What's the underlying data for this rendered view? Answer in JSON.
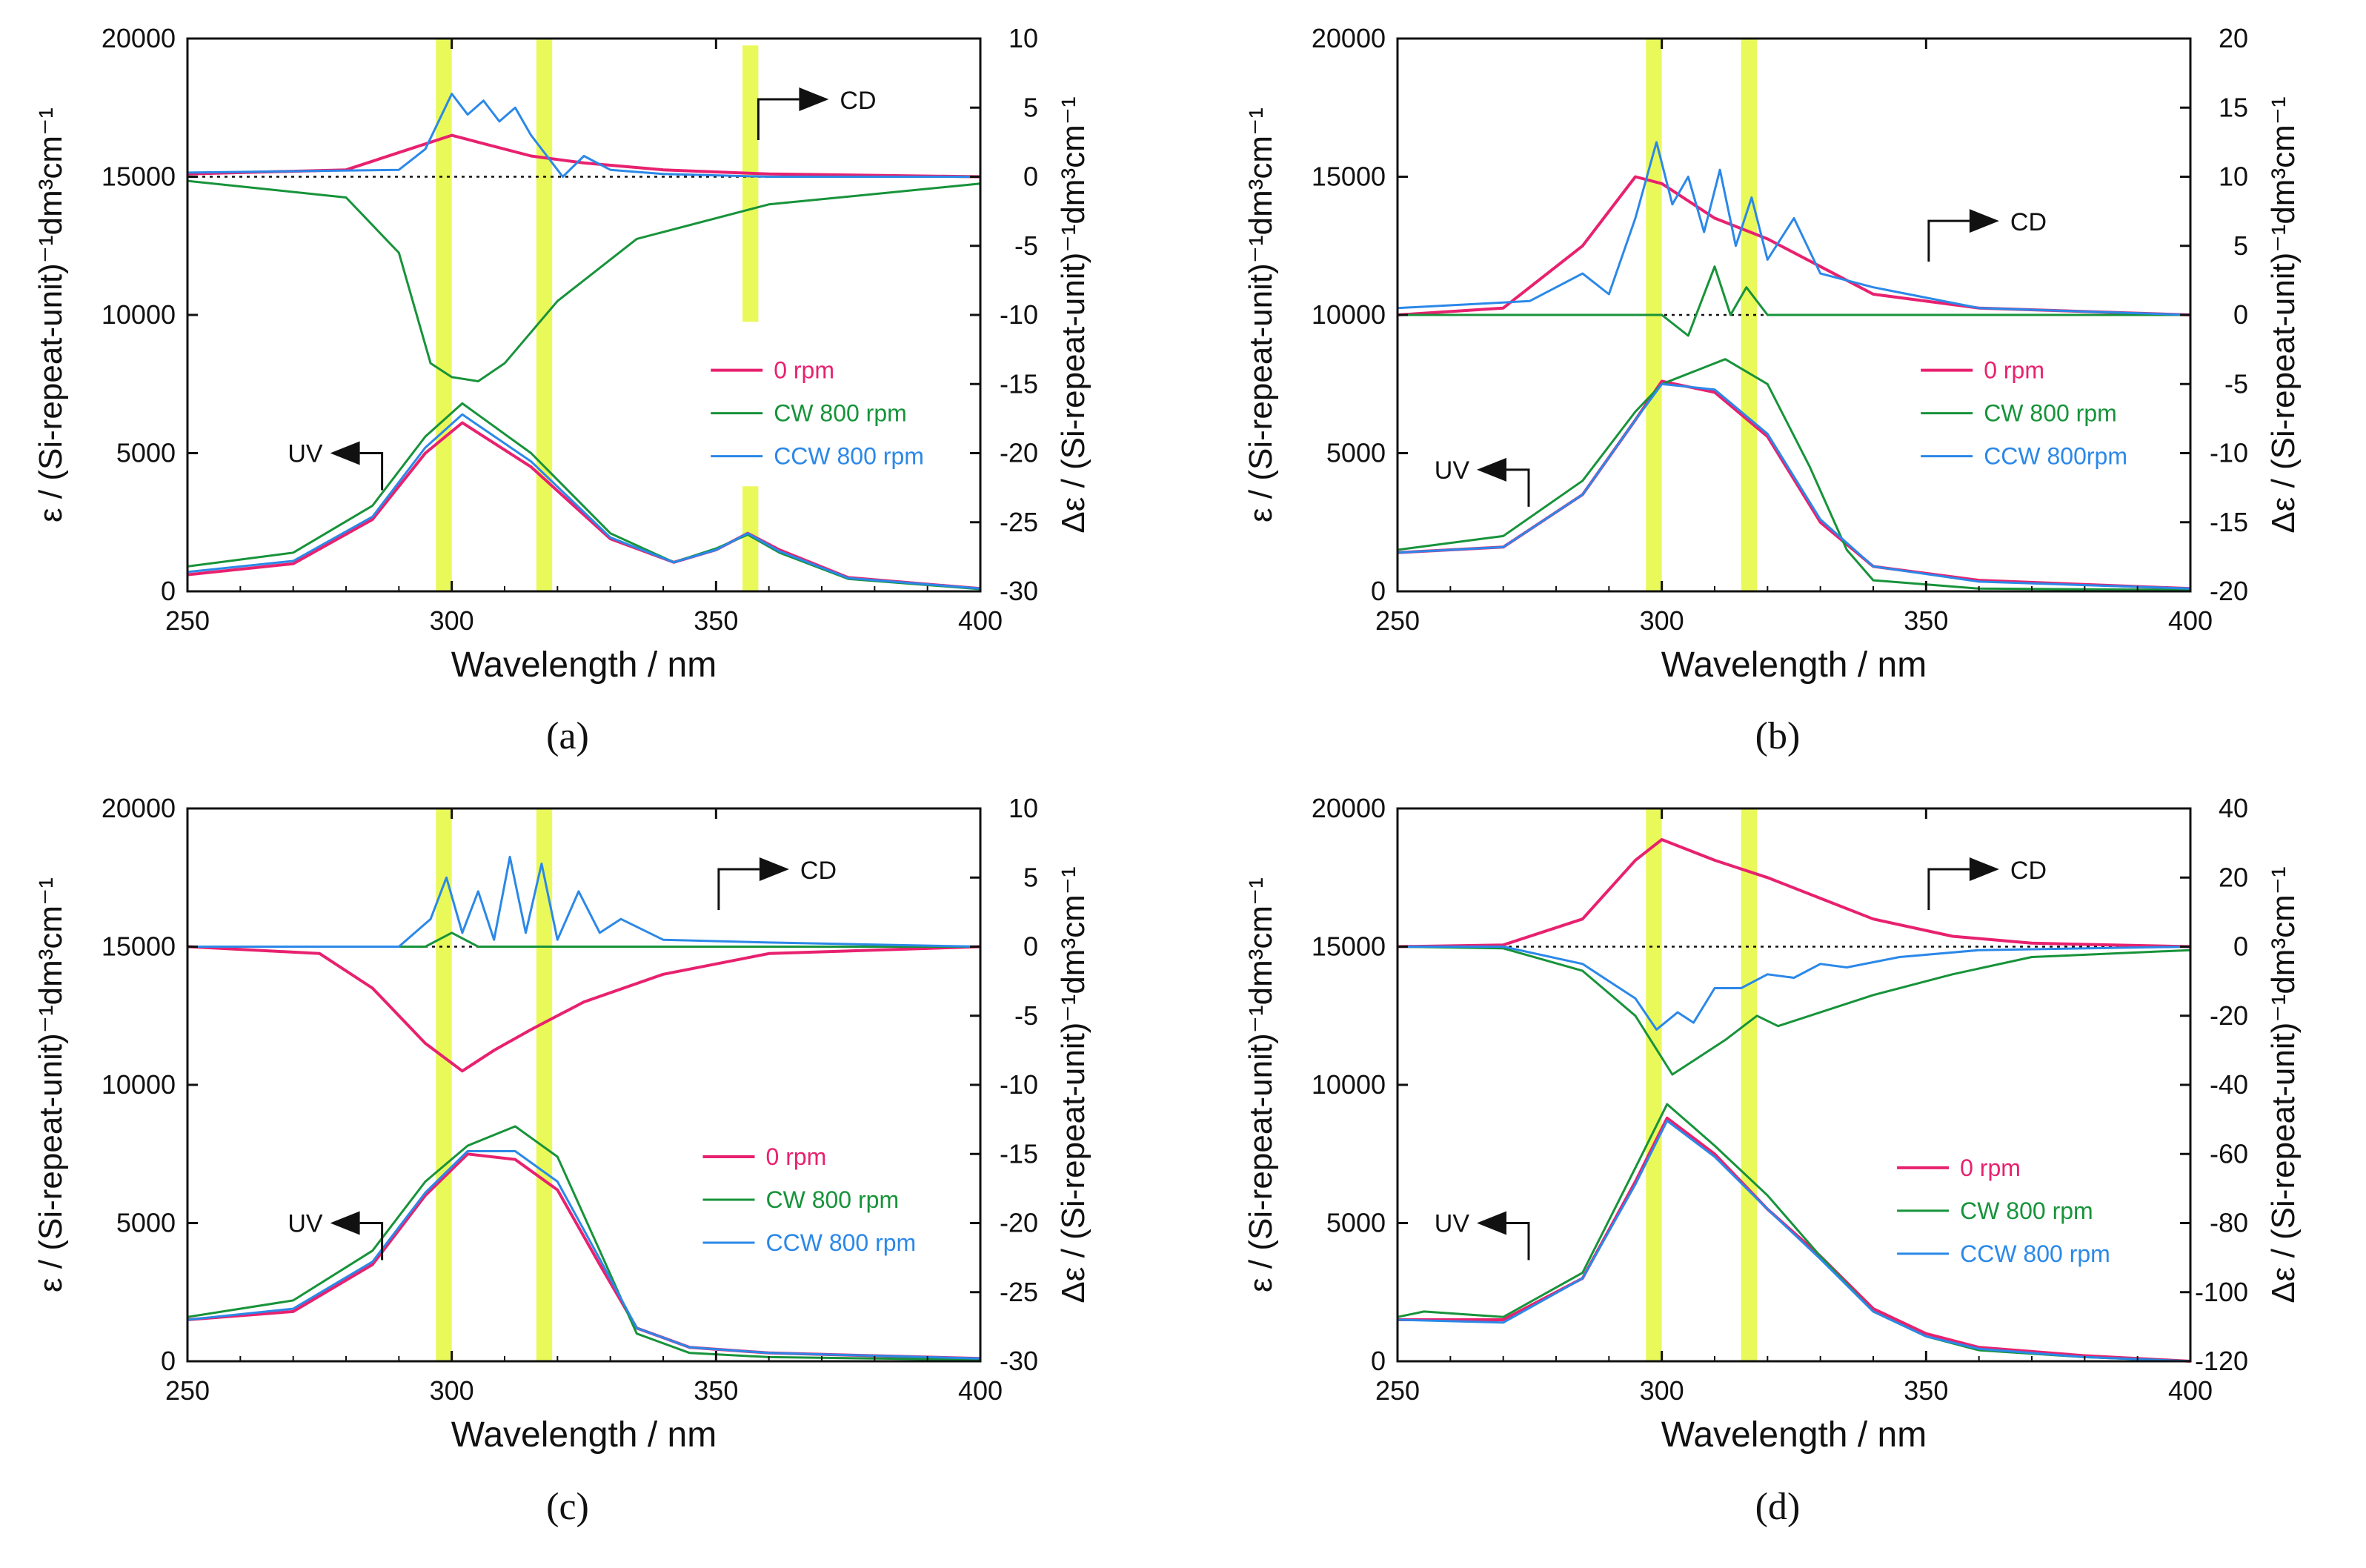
{
  "chart_data": [
    {
      "panel": "a",
      "caption_text": "(a)",
      "type": "line",
      "xlabel": "Wavelength / nm",
      "ylabel_left": "ε / (Si-repeat-unit)⁻¹dm³cm⁻¹",
      "ylabel_right": "Δε / (Si-repeat-unit)⁻¹dm³cm⁻¹",
      "xlim": [
        250,
        400
      ],
      "ylim_left": [
        0,
        20000
      ],
      "ylim_right": [
        -30,
        10
      ],
      "xticks": [
        "250",
        "300",
        "350",
        "400"
      ],
      "yticks_left": [
        "0",
        "5000",
        "10000",
        "15000",
        "20000"
      ],
      "yticks_right": [
        "-30",
        "-25",
        "-20",
        "-15",
        "-10",
        "-5",
        "0",
        "5",
        "10"
      ],
      "highlight_bands": [
        [
          297,
          300
        ],
        [
          316,
          319
        ],
        [
          355,
          358
        ]
      ],
      "cd_arrow_label": "CD",
      "uv_arrow_label": "UV",
      "legend": [
        "0 rpm",
        "CW 800 rpm",
        "CCW 800 rpm"
      ],
      "uv_series": [
        {
          "name": "0 rpm",
          "x": [
            250,
            270,
            285,
            295,
            302,
            315,
            330,
            342,
            350,
            356,
            362,
            375,
            400
          ],
          "y": [
            600,
            1000,
            2600,
            5000,
            6100,
            4500,
            1900,
            1050,
            1500,
            2100,
            1500,
            500,
            100
          ]
        },
        {
          "name": "CW 800 rpm",
          "x": [
            250,
            270,
            285,
            295,
            302,
            315,
            330,
            342,
            350,
            356,
            362,
            375,
            400
          ],
          "y": [
            900,
            1400,
            3100,
            5600,
            6800,
            5000,
            2100,
            1050,
            1550,
            2050,
            1400,
            450,
            80
          ]
        },
        {
          "name": "CCW 800 rpm",
          "x": [
            250,
            270,
            285,
            295,
            302,
            315,
            330,
            342,
            350,
            356,
            362,
            375,
            400
          ],
          "y": [
            700,
            1100,
            2700,
            5200,
            6400,
            4700,
            1950,
            1050,
            1500,
            2100,
            1450,
            480,
            100
          ]
        }
      ],
      "cd_series": [
        {
          "name": "0 rpm",
          "x": [
            250,
            280,
            292,
            300,
            305,
            315,
            325,
            340,
            360,
            400
          ],
          "y": [
            0.2,
            0.5,
            2.0,
            3.0,
            2.5,
            1.5,
            1.0,
            0.5,
            0.2,
            0
          ]
        },
        {
          "name": "CW 800 rpm",
          "x": [
            250,
            280,
            290,
            296,
            300,
            305,
            310,
            320,
            335,
            360,
            400
          ],
          "y": [
            -0.3,
            -1.5,
            -5.5,
            -13.5,
            -14.5,
            -14.8,
            -13.5,
            -9.0,
            -4.5,
            -2.0,
            -0.5
          ]
        },
        {
          "name": "CCW 800 rpm",
          "x": [
            250,
            290,
            295,
            300,
            303,
            306,
            309,
            312,
            315,
            318,
            321,
            325,
            330,
            340,
            360,
            400
          ],
          "y": [
            0.3,
            0.5,
            2.0,
            6.0,
            4.5,
            5.5,
            4.0,
            5.0,
            3.0,
            1.5,
            0,
            1.5,
            0.5,
            0.2,
            0,
            0
          ]
        }
      ]
    },
    {
      "panel": "b",
      "caption_text": "(b)",
      "type": "line",
      "xlabel": "Wavelength / nm",
      "ylabel_left": "ε / (Si-repeat-unit)⁻¹dm³cm⁻¹",
      "ylabel_right": "Δε / (Si-repeat-unit)⁻¹dm³cm⁻¹",
      "xlim": [
        250,
        400
      ],
      "ylim_left": [
        0,
        20000
      ],
      "ylim_right": [
        -20,
        20
      ],
      "xticks": [
        "250",
        "300",
        "350",
        "400"
      ],
      "yticks_left": [
        "0",
        "5000",
        "10000",
        "15000",
        "20000"
      ],
      "yticks_right": [
        "-20",
        "-15",
        "-10",
        "-5",
        "0",
        "5",
        "10",
        "15",
        "20"
      ],
      "highlight_bands": [
        [
          297,
          300
        ],
        [
          315,
          318
        ]
      ],
      "cd_arrow_label": "CD",
      "uv_arrow_label": "UV",
      "legend": [
        "0 rpm",
        "CW 800 rpm",
        "CCW 800rpm"
      ],
      "uv_series": [
        {
          "name": "0 rpm",
          "x": [
            250,
            270,
            285,
            295,
            300,
            310,
            320,
            330,
            340,
            360,
            400
          ],
          "y": [
            1400,
            1600,
            3500,
            6200,
            7600,
            7200,
            5600,
            2500,
            900,
            400,
            100
          ]
        },
        {
          "name": "CW 800 rpm",
          "x": [
            250,
            270,
            285,
            295,
            300,
            312,
            320,
            328,
            335,
            340,
            360,
            400
          ],
          "y": [
            1500,
            2000,
            4000,
            6500,
            7500,
            8400,
            7500,
            4500,
            1500,
            400,
            100,
            50
          ]
        },
        {
          "name": "CCW 800rpm",
          "x": [
            250,
            270,
            285,
            295,
            300,
            310,
            320,
            330,
            340,
            360,
            400
          ],
          "y": [
            1400,
            1600,
            3500,
            6200,
            7500,
            7300,
            5700,
            2600,
            900,
            350,
            100
          ]
        }
      ],
      "cd_series": [
        {
          "name": "0 rpm",
          "x": [
            250,
            270,
            285,
            295,
            300,
            310,
            320,
            330,
            340,
            360,
            400
          ],
          "y": [
            0,
            0.5,
            5.0,
            10.0,
            9.5,
            7.0,
            5.5,
            3.5,
            1.5,
            0.5,
            0
          ]
        },
        {
          "name": "CW 800 rpm",
          "x": [
            250,
            300,
            305,
            310,
            313,
            316,
            320,
            400
          ],
          "y": [
            0,
            0,
            -1.5,
            3.5,
            0,
            2.0,
            0,
            0
          ]
        },
        {
          "name": "CCW 800rpm",
          "x": [
            250,
            275,
            285,
            290,
            295,
            299,
            302,
            305,
            308,
            311,
            314,
            317,
            320,
            325,
            330,
            340,
            360,
            400
          ],
          "y": [
            0.5,
            1.0,
            3.0,
            1.5,
            7.0,
            12.5,
            8.0,
            10.0,
            6.0,
            10.5,
            5.0,
            8.5,
            4.0,
            7.0,
            3.0,
            2.0,
            0.5,
            0
          ]
        }
      ]
    },
    {
      "panel": "c",
      "caption_text": "(c)",
      "type": "line",
      "xlabel": "Wavelength / nm",
      "ylabel_left": "ε / (Si-repeat-unit)⁻¹dm³cm⁻¹",
      "ylabel_right": "Δε / (Si-repeat-unit)⁻¹dm³cm⁻¹",
      "xlim": [
        250,
        400
      ],
      "ylim_left": [
        0,
        20000
      ],
      "ylim_right": [
        -30,
        10
      ],
      "xticks": [
        "250",
        "300",
        "350",
        "400"
      ],
      "yticks_left": [
        "0",
        "5000",
        "10000",
        "15000",
        "20000"
      ],
      "yticks_right": [
        "-30",
        "-25",
        "-20",
        "-15",
        "-10",
        "-5",
        "0",
        "5",
        "10"
      ],
      "highlight_bands": [
        [
          297,
          300
        ],
        [
          316,
          319
        ]
      ],
      "cd_arrow_label": "CD",
      "uv_arrow_label": "UV",
      "legend": [
        "0 rpm",
        "CW 800 rpm",
        "CCW 800 rpm"
      ],
      "uv_series": [
        {
          "name": "0 rpm",
          "x": [
            250,
            270,
            285,
            295,
            303,
            312,
            320,
            328,
            335,
            345,
            360,
            400
          ],
          "y": [
            1500,
            1800,
            3500,
            6000,
            7500,
            7300,
            6200,
            3500,
            1200,
            500,
            300,
            100
          ]
        },
        {
          "name": "CW 800 rpm",
          "x": [
            250,
            270,
            285,
            295,
            303,
            312,
            320,
            328,
            335,
            345,
            360,
            400
          ],
          "y": [
            1600,
            2200,
            4000,
            6500,
            7800,
            8500,
            7400,
            4000,
            1000,
            300,
            150,
            50
          ]
        },
        {
          "name": "CCW 800 rpm",
          "x": [
            250,
            270,
            285,
            295,
            303,
            312,
            320,
            328,
            335,
            345,
            360,
            400
          ],
          "y": [
            1500,
            1900,
            3600,
            6100,
            7600,
            7600,
            6500,
            3700,
            1200,
            500,
            300,
            100
          ]
        }
      ],
      "cd_series": [
        {
          "name": "0 rpm",
          "x": [
            250,
            275,
            285,
            295,
            302,
            308,
            315,
            325,
            340,
            360,
            400
          ],
          "y": [
            0,
            -0.5,
            -3.0,
            -7.0,
            -9.0,
            -7.5,
            -6.0,
            -4.0,
            -2.0,
            -0.5,
            0
          ]
        },
        {
          "name": "CW 800 rpm",
          "x": [
            250,
            295,
            300,
            305,
            400
          ],
          "y": [
            0,
            0,
            1.0,
            0,
            0
          ]
        },
        {
          "name": "CCW 800 rpm",
          "x": [
            250,
            290,
            296,
            299,
            302,
            305,
            308,
            311,
            314,
            317,
            320,
            324,
            328,
            332,
            340,
            360,
            400
          ],
          "y": [
            0,
            0,
            2.0,
            5.0,
            1.0,
            4.0,
            0.5,
            6.5,
            1.0,
            6.0,
            0.5,
            4.0,
            1.0,
            2.0,
            0.5,
            0.3,
            0
          ]
        }
      ]
    },
    {
      "panel": "d",
      "caption_text": "(d)",
      "type": "line",
      "xlabel": "Wavelength / nm",
      "ylabel_left": "ε / (Si-repeat-unit)⁻¹dm³cm⁻¹",
      "ylabel_right": "Δε / (Si-repeat-unit)⁻¹dm³cm⁻¹",
      "xlim": [
        250,
        400
      ],
      "ylim_left": [
        0,
        20000
      ],
      "ylim_right": [
        -120,
        40
      ],
      "xticks": [
        "250",
        "300",
        "350",
        "400"
      ],
      "yticks_left": [
        "0",
        "5000",
        "10000",
        "15000",
        "20000"
      ],
      "yticks_right": [
        "-120",
        "-100",
        "-80",
        "-60",
        "-40",
        "-20",
        "0",
        "20",
        "40"
      ],
      "highlight_bands": [
        [
          297,
          300
        ],
        [
          315,
          318
        ]
      ],
      "cd_arrow_label": "CD",
      "uv_arrow_label": "UV",
      "legend": [
        "0 rpm",
        "CW 800 rpm",
        "CCW 800 rpm"
      ],
      "uv_series": [
        {
          "name": "0 rpm",
          "x": [
            250,
            270,
            285,
            295,
            301,
            310,
            320,
            330,
            340,
            350,
            360,
            380,
            400
          ],
          "y": [
            1500,
            1500,
            3000,
            6500,
            8800,
            7500,
            5500,
            3800,
            1900,
            1000,
            500,
            200,
            0
          ]
        },
        {
          "name": "CW 800 rpm",
          "x": [
            250,
            255,
            270,
            285,
            295,
            301,
            310,
            320,
            330,
            340,
            350,
            360,
            380,
            400
          ],
          "y": [
            1600,
            1800,
            1600,
            3200,
            7000,
            9300,
            7800,
            6000,
            3800,
            1800,
            900,
            400,
            150,
            0
          ]
        },
        {
          "name": "CCW 800 rpm",
          "x": [
            250,
            270,
            285,
            295,
            301,
            310,
            320,
            330,
            340,
            350,
            360,
            380,
            400
          ],
          "y": [
            1500,
            1400,
            3000,
            6400,
            8700,
            7400,
            5500,
            3700,
            1800,
            900,
            450,
            150,
            0
          ]
        }
      ],
      "cd_series": [
        {
          "name": "0 rpm",
          "x": [
            250,
            270,
            285,
            295,
            300,
            310,
            320,
            330,
            340,
            355,
            370,
            400
          ],
          "y": [
            0,
            0.5,
            8.0,
            25.0,
            31.0,
            25.0,
            20.0,
            14.0,
            8.0,
            3.0,
            1.0,
            0
          ]
        },
        {
          "name": "CW 800 rpm",
          "x": [
            250,
            270,
            285,
            295,
            302,
            306,
            312,
            318,
            322,
            330,
            340,
            355,
            370,
            400
          ],
          "y": [
            0,
            -0.5,
            -7.0,
            -20.0,
            -37.0,
            -33.0,
            -27.0,
            -20.0,
            -23.0,
            -19.0,
            -14.0,
            -8.0,
            -3.0,
            -1.0
          ]
        },
        {
          "name": "CCW 800 rpm",
          "x": [
            250,
            270,
            285,
            295,
            299,
            303,
            306,
            310,
            315,
            320,
            325,
            330,
            335,
            345,
            360,
            400
          ],
          "y": [
            0,
            0,
            -5.0,
            -15.0,
            -24.0,
            -19.0,
            -22.0,
            -12.0,
            -12.0,
            -8.0,
            -9.0,
            -5.0,
            -6.0,
            -3.0,
            -1.0,
            0
          ]
        }
      ]
    }
  ],
  "colors": {
    "zero_rpm": "#e8216f",
    "cw": "#17933a",
    "ccw": "#2b88e8",
    "highlight": "#eaf95a",
    "axis": "#111111"
  }
}
